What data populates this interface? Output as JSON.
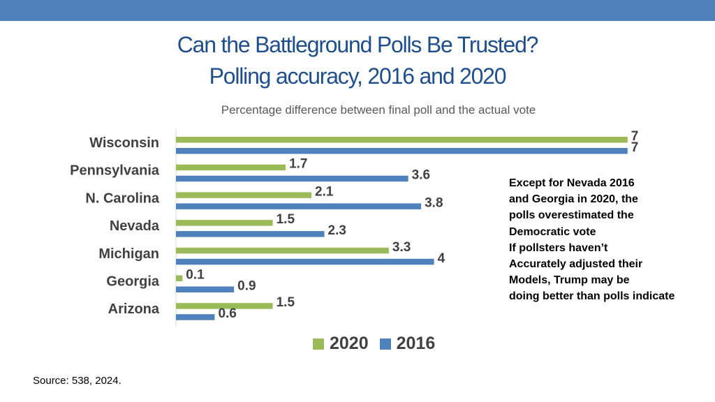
{
  "header": {
    "title_line1": "Can the Battleground Polls Be Trusted?",
    "title_line2": "Polling accuracy, 2016 and 2020",
    "subtitle": "Percentage difference between final poll and the actual vote"
  },
  "colors": {
    "series_2020": "#9bbb59",
    "series_2016": "#4f81bd",
    "top_bar": "#4f81bd",
    "title": "#1f4e8c"
  },
  "chart_data": {
    "type": "bar",
    "orientation": "horizontal",
    "title": "Polling accuracy, 2016 and 2020",
    "xlabel": "",
    "ylabel": "",
    "xlim": [
      0,
      7
    ],
    "grid": false,
    "legend_position": "bottom",
    "categories": [
      "Wisconsin",
      "Pennsylvania",
      "N. Carolina",
      "Nevada",
      "Michigan",
      "Georgia",
      "Arizona"
    ],
    "series": [
      {
        "name": "2020",
        "color": "#9bbb59",
        "values": [
          7,
          1.7,
          2.1,
          1.5,
          3.3,
          0.1,
          1.5
        ]
      },
      {
        "name": "2016",
        "color": "#4f81bd",
        "values": [
          7,
          3.6,
          3.8,
          2.3,
          4,
          0.9,
          0.6
        ]
      }
    ]
  },
  "legend": {
    "items": [
      "2020",
      "2016"
    ]
  },
  "annotation": {
    "lines": [
      "Except for Nevada 2016",
      "and Georgia in 2020, the",
      "polls overestimated the",
      "Democratic vote",
      "If pollsters haven’t",
      "Accurately adjusted their",
      "Models, Trump may be",
      "doing better than polls indicate"
    ]
  },
  "footer": {
    "source": "Source: 538, 2024."
  }
}
